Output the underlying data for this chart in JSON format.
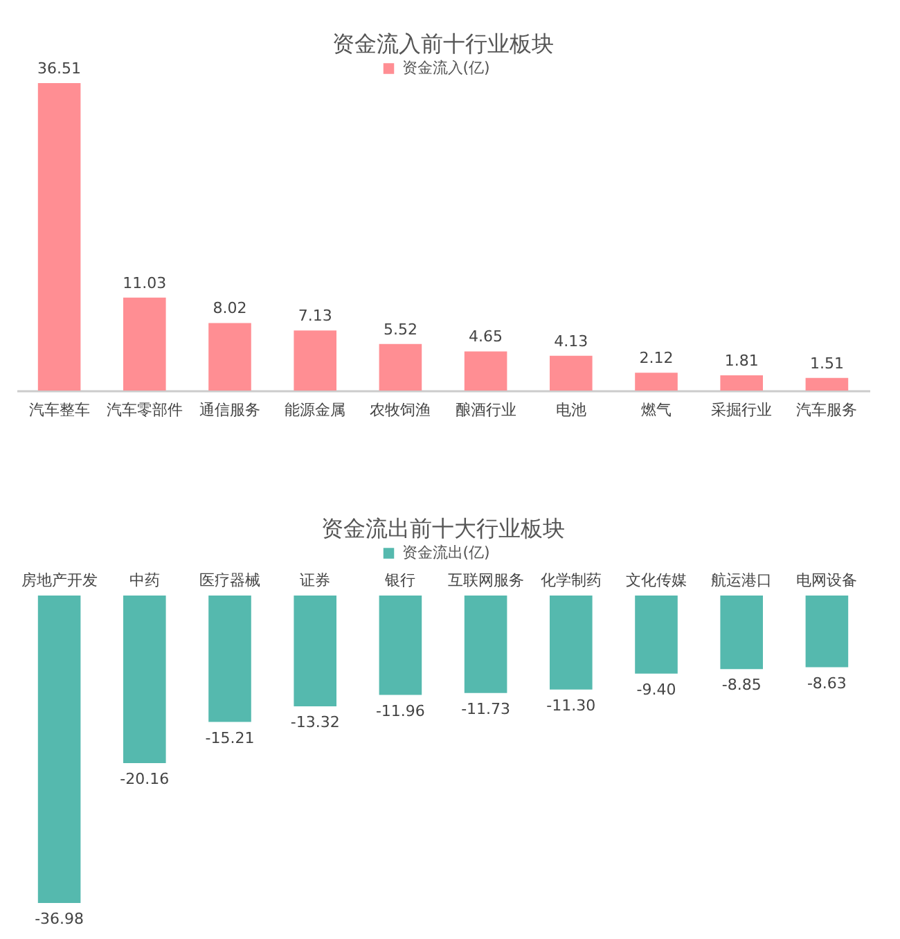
{
  "chart_data": [
    {
      "type": "bar",
      "title": "资金流入前十行业板块",
      "categories": [
        "汽车整车",
        "汽车零部件",
        "通信服务",
        "能源金属",
        "农牧饲渔",
        "酿酒行业",
        "电池",
        "燃气",
        "采掘行业",
        "汽车服务"
      ],
      "series": [
        {
          "name": "资金流入(亿)",
          "color": "#ff8e93",
          "values": [
            36.51,
            11.03,
            8.02,
            7.13,
            5.52,
            4.65,
            4.13,
            2.12,
            1.81,
            1.51
          ]
        }
      ],
      "data_labels": true,
      "legend": "top"
    },
    {
      "type": "bar",
      "title": "资金流出前十大行业板块",
      "categories": [
        "房地产开发",
        "中药",
        "医疗器械",
        "证券",
        "银行",
        "互联网服务",
        "化学制药",
        "文化传媒",
        "航运港口",
        "电网设备"
      ],
      "series": [
        {
          "name": "资金流出(亿)",
          "color": "#55b9ae",
          "values": [
            -36.98,
            -20.16,
            -15.21,
            -13.32,
            -11.96,
            -11.73,
            -11.3,
            -9.4,
            -8.85,
            -8.63
          ],
          "value_labels": [
            "-36.98",
            "-20.16",
            "-15.21",
            "-13.32",
            "-11.96",
            "-11.73",
            "-11.30",
            "-9.40",
            "-8.85",
            "-8.63"
          ]
        }
      ],
      "legend": "top"
    }
  ]
}
